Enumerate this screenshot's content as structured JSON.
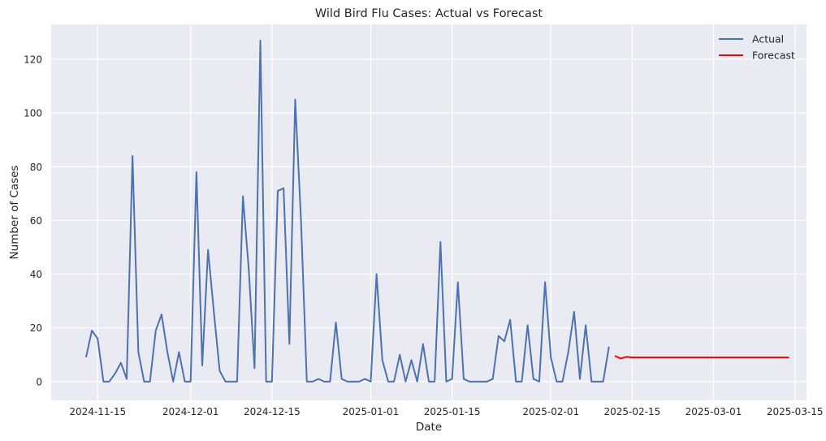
{
  "chart_data": {
    "type": "line",
    "title": "Wild Bird Flu Cases: Actual vs Forecast",
    "xlabel": "Date",
    "ylabel": "Number of Cases",
    "xlim": [
      "2024-11-07",
      "2025-03-17"
    ],
    "ylim": [
      -7,
      133
    ],
    "x_ticks": [
      "2024-11-15",
      "2024-12-01",
      "2024-12-15",
      "2025-01-01",
      "2025-01-15",
      "2025-02-01",
      "2025-02-15",
      "2025-03-01",
      "2025-03-15"
    ],
    "y_ticks": [
      0,
      20,
      40,
      60,
      80,
      100,
      120
    ],
    "grid": true,
    "legend": "top-right",
    "series": [
      {
        "name": "Actual",
        "color": "#4c72b0",
        "points": [
          [
            "2024-11-13",
            9
          ],
          [
            "2024-11-14",
            19
          ],
          [
            "2024-11-15",
            16
          ],
          [
            "2024-11-16",
            0
          ],
          [
            "2024-11-17",
            0
          ],
          [
            "2024-11-18",
            3
          ],
          [
            "2024-11-19",
            7
          ],
          [
            "2024-11-20",
            1
          ],
          [
            "2024-11-21",
            84
          ],
          [
            "2024-11-22",
            11
          ],
          [
            "2024-11-23",
            0
          ],
          [
            "2024-11-24",
            0
          ],
          [
            "2024-11-25",
            19
          ],
          [
            "2024-11-26",
            25
          ],
          [
            "2024-11-27",
            11
          ],
          [
            "2024-11-28",
            0
          ],
          [
            "2024-11-29",
            11
          ],
          [
            "2024-11-30",
            0
          ],
          [
            "2024-12-01",
            0
          ],
          [
            "2024-12-02",
            78
          ],
          [
            "2024-12-03",
            6
          ],
          [
            "2024-12-04",
            49
          ],
          [
            "2024-12-05",
            26
          ],
          [
            "2024-12-06",
            4
          ],
          [
            "2024-12-07",
            0
          ],
          [
            "2024-12-08",
            0
          ],
          [
            "2024-12-09",
            0
          ],
          [
            "2024-12-10",
            69
          ],
          [
            "2024-12-11",
            42
          ],
          [
            "2024-12-12",
            5
          ],
          [
            "2024-12-13",
            127
          ],
          [
            "2024-12-14",
            0
          ],
          [
            "2024-12-15",
            0
          ],
          [
            "2024-12-16",
            71
          ],
          [
            "2024-12-17",
            72
          ],
          [
            "2024-12-18",
            14
          ],
          [
            "2024-12-19",
            105
          ],
          [
            "2024-12-20",
            60
          ],
          [
            "2024-12-21",
            0
          ],
          [
            "2024-12-22",
            0
          ],
          [
            "2024-12-23",
            1
          ],
          [
            "2024-12-24",
            0
          ],
          [
            "2024-12-25",
            0
          ],
          [
            "2024-12-26",
            22
          ],
          [
            "2024-12-27",
            1
          ],
          [
            "2024-12-28",
            0
          ],
          [
            "2024-12-29",
            0
          ],
          [
            "2024-12-30",
            0
          ],
          [
            "2024-12-31",
            1
          ],
          [
            "2025-01-01",
            0
          ],
          [
            "2025-01-02",
            40
          ],
          [
            "2025-01-03",
            8
          ],
          [
            "2025-01-04",
            0
          ],
          [
            "2025-01-05",
            0
          ],
          [
            "2025-01-06",
            10
          ],
          [
            "2025-01-07",
            0
          ],
          [
            "2025-01-08",
            8
          ],
          [
            "2025-01-09",
            0
          ],
          [
            "2025-01-10",
            14
          ],
          [
            "2025-01-11",
            0
          ],
          [
            "2025-01-12",
            0
          ],
          [
            "2025-01-13",
            52
          ],
          [
            "2025-01-14",
            0
          ],
          [
            "2025-01-15",
            1
          ],
          [
            "2025-01-16",
            37
          ],
          [
            "2025-01-17",
            1
          ],
          [
            "2025-01-18",
            0
          ],
          [
            "2025-01-19",
            0
          ],
          [
            "2025-01-20",
            0
          ],
          [
            "2025-01-21",
            0
          ],
          [
            "2025-01-22",
            1
          ],
          [
            "2025-01-23",
            17
          ],
          [
            "2025-01-24",
            15
          ],
          [
            "2025-01-25",
            23
          ],
          [
            "2025-01-26",
            0
          ],
          [
            "2025-01-27",
            0
          ],
          [
            "2025-01-28",
            21
          ],
          [
            "2025-01-29",
            1
          ],
          [
            "2025-01-30",
            0
          ],
          [
            "2025-01-31",
            37
          ],
          [
            "2025-02-01",
            9
          ],
          [
            "2025-02-02",
            0
          ],
          [
            "2025-02-03",
            0
          ],
          [
            "2025-02-04",
            11
          ],
          [
            "2025-02-05",
            26
          ],
          [
            "2025-02-06",
            1
          ],
          [
            "2025-02-07",
            21
          ],
          [
            "2025-02-08",
            0
          ],
          [
            "2025-02-09",
            0
          ],
          [
            "2025-02-10",
            0
          ],
          [
            "2025-02-11",
            13
          ]
        ]
      },
      {
        "name": "Forecast",
        "color": "#ff0000",
        "points": [
          [
            "2025-02-12",
            9.6
          ],
          [
            "2025-02-13",
            8.6
          ],
          [
            "2025-02-14",
            9.2
          ],
          [
            "2025-02-15",
            9.0
          ],
          [
            "2025-02-20",
            9.0
          ],
          [
            "2025-02-25",
            9.0
          ],
          [
            "2025-03-01",
            9.0
          ],
          [
            "2025-03-05",
            9.0
          ],
          [
            "2025-03-10",
            9.0
          ],
          [
            "2025-03-14",
            9.0
          ]
        ]
      }
    ]
  }
}
